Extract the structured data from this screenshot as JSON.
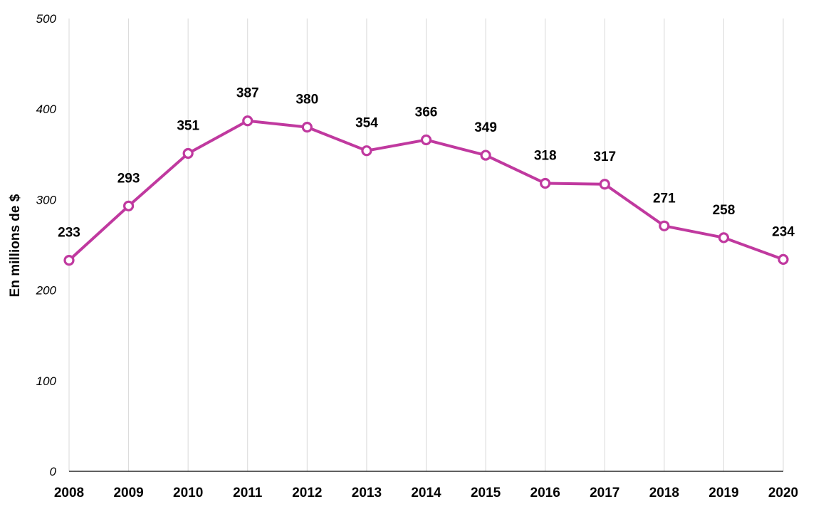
{
  "chart_data": {
    "type": "line",
    "title": "",
    "xlabel": "",
    "ylabel": "En millions de $",
    "x": [
      "2008",
      "2009",
      "2010",
      "2011",
      "2012",
      "2013",
      "2014",
      "2015",
      "2016",
      "2017",
      "2018",
      "2019",
      "2020"
    ],
    "series": [
      {
        "values": [
          233,
          293,
          351,
          387,
          380,
          354,
          366,
          349,
          318,
          317,
          271,
          258,
          234
        ],
        "color": "#c0399f",
        "marker": "open-circle"
      }
    ],
    "yticks": [
      "0",
      "100",
      "200",
      "300",
      "400",
      "500"
    ],
    "ylim": [
      0,
      500
    ],
    "grid": "vertical",
    "data_labels": true,
    "legend": "none"
  }
}
